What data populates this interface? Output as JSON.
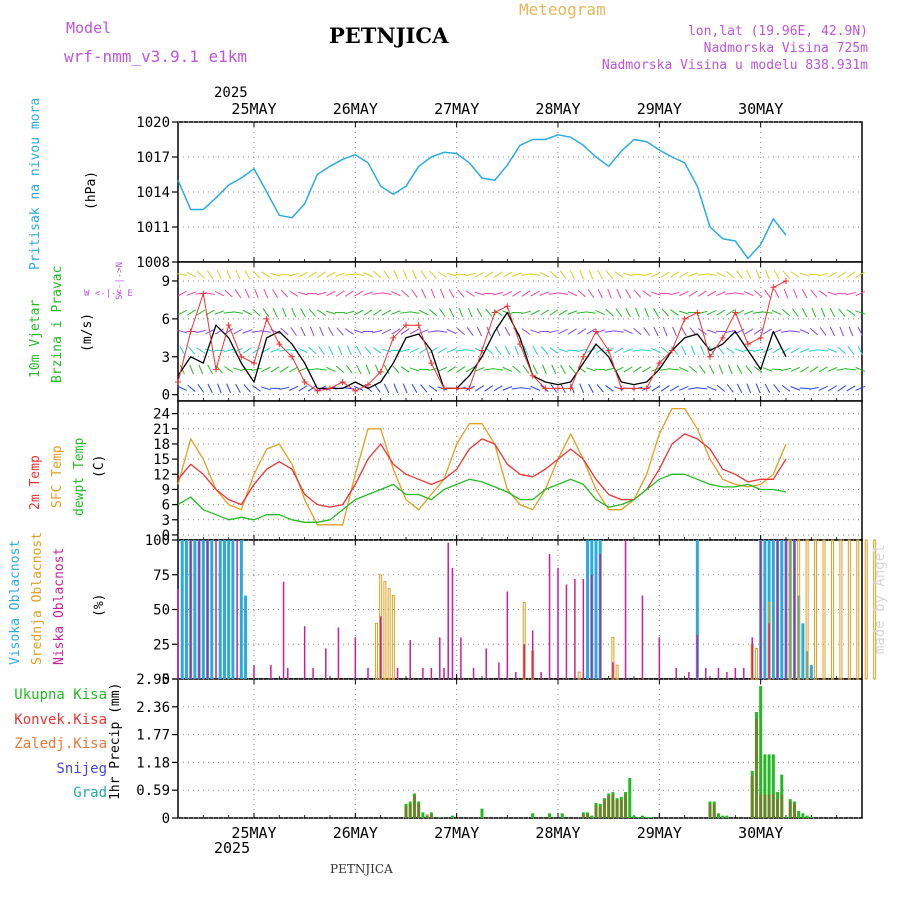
{
  "header": {
    "model_label": "Model",
    "model_name": "wrf-nmm_v3.9.1 e1km",
    "station": "PETNJICA",
    "meteogram": "Meteogram",
    "coords": "lon,lat (19.96E, 42.9N)",
    "altitude": "Nadmorska Visina 725m",
    "model_altitude": "Nadmorska Visina u modelu 838.931m"
  },
  "footer": {
    "station": "PETNJICA",
    "watermark": "made by Angel"
  },
  "colors": {
    "pressure": "#29abe2",
    "wind_label": "#22bb22",
    "temp2m": "#ee3333",
    "sfc": "#e0a020",
    "dewpt": "#22bb22",
    "high_cloud": "#29abe2",
    "mid_cloud": "#e0a020",
    "low_cloud": "#cc1f99",
    "precip": "#22bb22",
    "snow": "#4444dd",
    "grad": "#22aaaa",
    "purple_text": "#bb55dd",
    "orange_text": "#e6b65a"
  },
  "wind_compass": {
    "north": "N",
    "west": "W",
    "east": "E",
    "south": "S"
  },
  "chart_data": [
    {
      "type": "line",
      "ylabel": [
        "Pritisak na nivou mora",
        "(hPa)"
      ],
      "ylim": [
        1008,
        1020
      ],
      "yticks": [
        "1008",
        "1011",
        "1014",
        "1017",
        "1020"
      ],
      "x_days": [
        "25MAY",
        "26MAY",
        "27MAY",
        "28MAY",
        "29MAY",
        "30MAY"
      ],
      "x_year": "2025",
      "x": [
        0,
        3,
        6,
        9,
        12,
        15,
        18,
        21,
        24,
        27,
        30,
        33,
        36,
        39,
        42,
        45,
        48,
        51,
        54,
        57,
        60,
        63,
        66,
        69,
        72,
        75,
        78,
        81,
        84,
        87,
        90,
        93,
        96,
        99,
        102,
        105,
        108,
        111,
        114,
        117,
        120,
        123,
        126,
        129,
        132,
        135,
        138,
        141,
        144
      ],
      "series": [
        {
          "name": "Pritisak",
          "values": [
            1015,
            1012.5,
            1012.5,
            1013.5,
            1014.6,
            1015.2,
            1016.0,
            1014.0,
            1012.0,
            1011.8,
            1013.0,
            1015.5,
            1016.2,
            1016.8,
            1017.2,
            1016.5,
            1014.5,
            1013.8,
            1014.5,
            1016.2,
            1017.0,
            1017.4,
            1017.3,
            1016.5,
            1015.2,
            1015.0,
            1016.3,
            1018.0,
            1018.5,
            1018.5,
            1018.9,
            1018.7,
            1018.0,
            1017.0,
            1016.2,
            1017.5,
            1018.5,
            1018.3,
            1017.6,
            1017.0,
            1016.5,
            1014.5,
            1011.0,
            1010.0,
            1009.8,
            1008.3,
            1009.5,
            1011.7,
            1010.3
          ]
        }
      ]
    },
    {
      "type": "line",
      "ylabel": [
        "10m Vjetar",
        "Brzina i Pravac",
        "(m/s)"
      ],
      "ylim": [
        -0.5,
        10.5
      ],
      "yticks": [
        "0",
        "3",
        "6",
        "9"
      ],
      "x": [
        0,
        3,
        6,
        9,
        12,
        15,
        18,
        21,
        24,
        27,
        30,
        33,
        36,
        39,
        42,
        45,
        48,
        51,
        54,
        57,
        60,
        63,
        66,
        69,
        72,
        75,
        78,
        81,
        84,
        87,
        90,
        93,
        96,
        99,
        102,
        105,
        108,
        111,
        114,
        117,
        120,
        123,
        126,
        129,
        132,
        135,
        138,
        141,
        144
      ],
      "series": [
        {
          "name": "Brzina",
          "values": [
            1.5,
            3,
            2.5,
            5.5,
            4.5,
            2.5,
            1,
            4.5,
            5,
            4,
            2.5,
            0.5,
            0.5,
            0.5,
            1,
            0.5,
            1,
            2.5,
            4.5,
            4.8,
            3.5,
            0.5,
            0.5,
            1.5,
            3,
            5,
            6.5,
            4.5,
            1.5,
            1,
            0.8,
            1,
            2.5,
            4,
            3,
            1,
            0.8,
            1,
            2,
            3.5,
            4.5,
            4.8,
            3.5,
            4,
            5,
            3.5,
            2,
            5,
            3
          ]
        },
        {
          "name": "Udari",
          "values": [
            1,
            5,
            8,
            2,
            5.5,
            3,
            2.5,
            6,
            4,
            3,
            1,
            0.3,
            0.5,
            1,
            0.3,
            0.8,
            1.8,
            4.5,
            5.5,
            5.5,
            2.5,
            0.5,
            0.5,
            0.5,
            3.5,
            6.5,
            7,
            4,
            1.5,
            0.5,
            0.5,
            0.5,
            3,
            5,
            3.5,
            0.5,
            0.5,
            0.5,
            2.5,
            3.5,
            6,
            6.5,
            3,
            4.5,
            6.5,
            4,
            4.5,
            8.5,
            9
          ]
        }
      ]
    },
    {
      "type": "line",
      "ylabel": [
        "2m Temp",
        "SFC Temp",
        "dewpt Temp",
        "(C)"
      ],
      "ylim": [
        -1,
        26.5
      ],
      "yticks": [
        "0",
        "3",
        "6",
        "9",
        "12",
        "15",
        "18",
        "21",
        "24"
      ],
      "x": [
        0,
        3,
        6,
        9,
        12,
        15,
        18,
        21,
        24,
        27,
        30,
        33,
        36,
        39,
        42,
        45,
        48,
        51,
        54,
        57,
        60,
        63,
        66,
        69,
        72,
        75,
        78,
        81,
        84,
        87,
        90,
        93,
        96,
        99,
        102,
        105,
        108,
        111,
        114,
        117,
        120,
        123,
        126,
        129,
        132,
        135,
        138,
        141,
        144
      ],
      "series": [
        {
          "name": "2m Temp",
          "values": [
            11,
            14,
            12,
            9,
            7,
            6,
            10,
            13,
            14.5,
            13,
            8,
            6,
            5.5,
            6,
            10,
            15,
            18,
            14,
            12,
            11,
            10,
            11,
            13,
            17,
            19,
            18,
            14,
            12,
            11.5,
            13,
            15,
            17,
            15,
            11,
            8,
            7,
            7,
            9,
            13,
            18,
            20,
            19,
            17,
            13,
            12,
            10.5,
            11,
            11,
            15
          ]
        },
        {
          "name": "SFC Temp",
          "values": [
            10,
            19,
            15,
            9,
            6,
            5,
            12,
            17,
            18,
            14,
            7,
            2,
            2,
            2,
            12,
            21,
            21,
            13,
            7,
            5,
            8,
            11,
            18,
            22,
            22,
            18,
            9,
            6,
            5,
            9,
            15,
            20,
            15,
            9,
            5,
            5,
            7,
            12,
            20,
            25,
            25,
            21,
            15,
            11,
            10,
            9.5,
            10,
            12,
            18
          ]
        },
        {
          "name": "dewpt Temp",
          "values": [
            6,
            7.5,
            5,
            4,
            3,
            3.5,
            3,
            4,
            4,
            3,
            2.5,
            2.5,
            3,
            5,
            7,
            8,
            9,
            10,
            8,
            8,
            7,
            9,
            10,
            11,
            10.5,
            9.5,
            8.5,
            7,
            7,
            9,
            10,
            11,
            10,
            7,
            5.5,
            6,
            7,
            9,
            11,
            12,
            12,
            11,
            10,
            9.5,
            9.5,
            10,
            9,
            9,
            8.5
          ]
        }
      ]
    },
    {
      "type": "bar",
      "ylabel": [
        "Visoka Oblacnost",
        "Srednja Oblacnost",
        "Niska Oblacnost",
        "(%)"
      ],
      "ylim": [
        0,
        100
      ],
      "yticks": [
        "0",
        "25",
        "50",
        "75",
        "100"
      ],
      "series": [
        {
          "name": "Visoka Oblacnost",
          "x": [
            1,
            2,
            3,
            4,
            5,
            6,
            7,
            8,
            10,
            11,
            12,
            13,
            15,
            16,
            97,
            98,
            99,
            100,
            123,
            138,
            139,
            140,
            141,
            142,
            143,
            144,
            145,
            146,
            147,
            148,
            149,
            150
          ],
          "values": [
            100,
            100,
            100,
            100,
            100,
            100,
            100,
            100,
            100,
            100,
            100,
            100,
            100,
            60,
            100,
            100,
            100,
            100,
            100,
            100,
            100,
            100,
            100,
            100,
            100,
            100,
            100,
            100,
            60,
            40,
            20,
            10
          ]
        },
        {
          "name": "Srednja Oblacnost",
          "x": [
            47,
            48,
            49,
            50,
            51,
            82,
            84,
            95,
            103,
            104,
            136,
            137,
            140,
            145,
            147,
            149,
            151,
            153,
            155,
            157,
            159,
            161,
            163,
            165
          ],
          "values": [
            40,
            75,
            70,
            65,
            60,
            55,
            20,
            5,
            30,
            10,
            25,
            22,
            55,
            100,
            100,
            100,
            100,
            100,
            100,
            100,
            100,
            100,
            100,
            100
          ],
          "style": "outlined"
        },
        {
          "name": "Niska Oblacnost",
          "x": [
            0,
            3,
            5,
            7,
            9,
            14,
            18,
            22,
            25,
            26,
            30,
            32,
            35,
            38,
            42,
            45,
            48,
            52,
            55,
            58,
            60,
            62,
            63,
            64,
            65,
            67,
            70,
            73,
            76,
            78,
            80,
            82,
            84,
            86,
            88,
            90,
            92,
            94,
            96,
            98,
            100,
            103,
            106,
            110,
            114,
            118,
            121,
            123,
            125,
            128,
            130,
            132,
            134,
            136,
            138,
            140,
            142,
            144,
            146
          ],
          "values": [
            65,
            100,
            100,
            100,
            100,
            100,
            10,
            10,
            70,
            8,
            38,
            8,
            22,
            37,
            30,
            8,
            45,
            8,
            28,
            8,
            8,
            30,
            8,
            98,
            80,
            30,
            8,
            22,
            12,
            63,
            5,
            25,
            35,
            5,
            90,
            80,
            68,
            72,
            72,
            75,
            90,
            12,
            100,
            60,
            30,
            8,
            5,
            32,
            8,
            8,
            5,
            8,
            8,
            30,
            100,
            40,
            100,
            100,
            100
          ]
        }
      ]
    },
    {
      "type": "bar",
      "ylabel": [
        "1hr Precip (mm)"
      ],
      "ylim": [
        0,
        2.95
      ],
      "yticks": [
        "0",
        "0.59",
        "1.18",
        "1.77",
        "2.36",
        "2.95"
      ],
      "legend": [
        "Ukupna Kisa",
        "Konvek.Kisa",
        "Zaledj.Kisa",
        "Snijeg",
        "Grad"
      ],
      "series": [
        {
          "name": "Ukupna Kisa",
          "x": [
            54,
            55,
            56,
            57,
            58,
            59,
            60,
            62,
            65,
            72,
            84,
            88,
            91,
            96,
            97,
            98,
            99,
            100,
            101,
            102,
            103,
            104,
            105,
            106,
            107,
            108,
            109,
            110,
            111,
            112,
            126,
            127,
            128,
            129,
            130,
            136,
            137,
            138,
            139,
            140,
            141,
            142,
            143,
            144,
            145,
            146,
            147,
            148,
            149,
            150
          ],
          "values": [
            0.3,
            0.35,
            0.52,
            0.35,
            0.12,
            0.05,
            0.12,
            0.02,
            0.05,
            0.2,
            0.1,
            0.1,
            0.1,
            0.12,
            0.12,
            0.05,
            0.32,
            0.3,
            0.42,
            0.52,
            0.55,
            0.42,
            0.45,
            0.55,
            0.85,
            0.05,
            0.02,
            0.05,
            0.02,
            0.02,
            0.35,
            0.35,
            0.1,
            0.05,
            0.05,
            1.0,
            2.25,
            2.8,
            1.35,
            1.35,
            1.35,
            0.55,
            0.92,
            0.02,
            0.4,
            0.35,
            0.15,
            0.1,
            0.05,
            0.02
          ]
        },
        {
          "name": "Konvek.Kisa",
          "x": [
            54,
            55,
            56,
            57,
            59,
            60,
            96,
            97,
            99,
            100,
            101,
            102,
            103,
            104,
            105,
            106,
            126,
            127,
            136,
            137,
            138,
            139,
            140,
            141,
            142,
            143,
            145,
            146
          ],
          "values": [
            0.25,
            0.3,
            0.48,
            0.3,
            0.08,
            0.08,
            0.08,
            0.08,
            0.25,
            0.25,
            0.38,
            0.48,
            0.5,
            0.38,
            0.38,
            0.5,
            0.3,
            0.3,
            0.9,
            2.1,
            0.5,
            0.5,
            0.5,
            0.5,
            0.4,
            0.5,
            0.35,
            0.3
          ]
        }
      ]
    }
  ]
}
